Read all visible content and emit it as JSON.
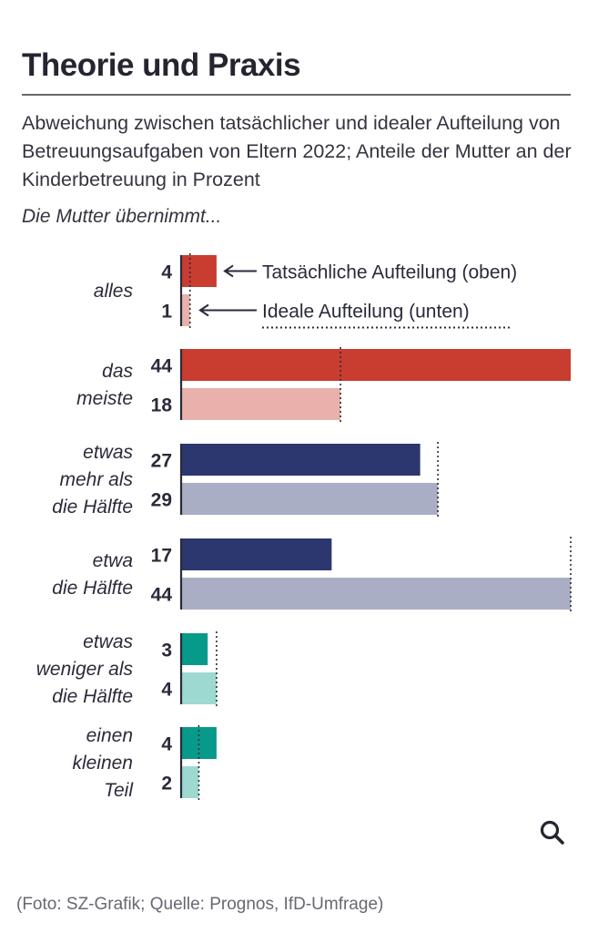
{
  "header": {
    "title": "Theorie und Praxis",
    "subtitle": "Abweichung zwischen tatsächlicher und idealer Aufteilung von Betreuungsaufgaben von Eltern 2022; Anteile der Mutter an der Kinderbetreuung in Prozent",
    "intro": "Die Mutter übernimmt..."
  },
  "chart_data": {
    "type": "bar",
    "orientation": "horizontal",
    "title": "Theorie und Praxis",
    "xlabel": "",
    "ylabel": "Die Mutter übernimmt...",
    "xlim": [
      0,
      44
    ],
    "grid": false,
    "categories": [
      [
        "alles"
      ],
      [
        "das",
        "meiste"
      ],
      [
        "etwas",
        "mehr als",
        "die Hälfte"
      ],
      [
        "etwa",
        "die Hälfte"
      ],
      [
        "etwas",
        "weniger als",
        "die Hälfte"
      ],
      [
        "einen",
        "kleinen",
        "Teil"
      ]
    ],
    "series": [
      {
        "name": "Tatsächliche Aufteilung (oben)",
        "values": [
          4,
          44,
          27,
          17,
          3,
          4
        ]
      },
      {
        "name": "Ideale Aufteilung (unten)",
        "values": [
          1,
          18,
          29,
          44,
          4,
          2
        ]
      }
    ],
    "group_colors": [
      {
        "actual": "#c83d30",
        "ideal": "#e8b1ab"
      },
      {
        "actual": "#c83d30",
        "ideal": "#e8b1ab"
      },
      {
        "actual": "#2c366f",
        "ideal": "#a9aec4"
      },
      {
        "actual": "#2c366f",
        "ideal": "#a9aec4"
      },
      {
        "actual": "#079a8a",
        "ideal": "#9dd8d1"
      },
      {
        "actual": "#079a8a",
        "ideal": "#9dd8d1"
      }
    ],
    "annotations": [
      {
        "text": "Tatsächliche Aufteilung (oben)",
        "points_to": "alles actual bar"
      },
      {
        "text": "Ideale Aufteilung (unten)",
        "points_to": "alles ideal bar"
      }
    ],
    "reference_line": "dotted line marks ideal value"
  },
  "footer": {
    "source": "(Foto: SZ-Grafik; Quelle: Prognos, IfD-Umfrage)",
    "search_icon": "search-icon"
  }
}
